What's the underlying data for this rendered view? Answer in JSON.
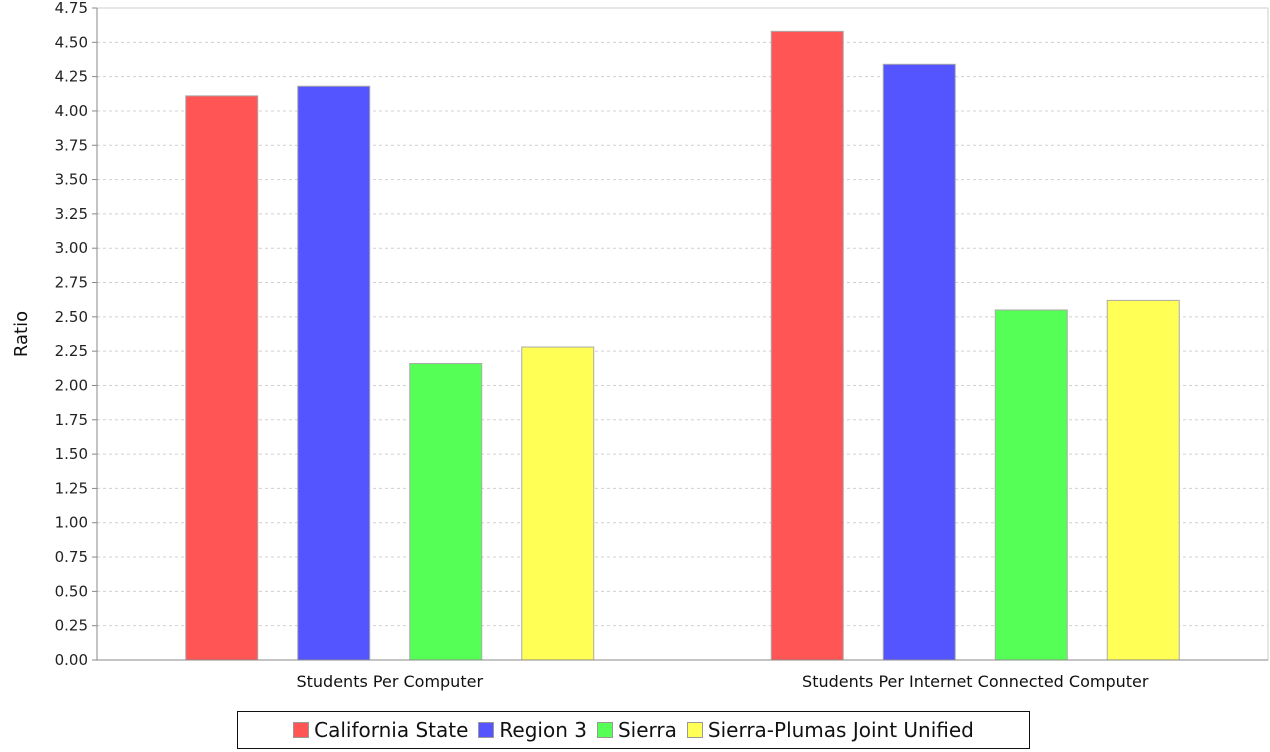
{
  "chart_data": {
    "type": "bar",
    "title": "",
    "xlabel": "",
    "ylabel": "Ratio",
    "ylim": [
      0,
      4.75
    ],
    "yticks": [
      "0.00",
      "0.25",
      "0.50",
      "0.75",
      "1.00",
      "1.25",
      "1.50",
      "1.75",
      "2.00",
      "2.25",
      "2.50",
      "2.75",
      "3.00",
      "3.25",
      "3.50",
      "3.75",
      "4.00",
      "4.25",
      "4.50",
      "4.75"
    ],
    "categories": [
      "Students Per Computer",
      "Students Per Internet Connected Computer"
    ],
    "series": [
      {
        "name": "California State",
        "color": "#ff5555",
        "values": [
          4.11,
          4.58
        ]
      },
      {
        "name": "Region 3",
        "color": "#5555ff",
        "values": [
          4.18,
          4.34
        ]
      },
      {
        "name": "Sierra",
        "color": "#55ff55",
        "values": [
          2.16,
          2.55
        ]
      },
      {
        "name": "Sierra-Plumas Joint Unified",
        "color": "#ffff55",
        "values": [
          2.28,
          2.62
        ]
      }
    ],
    "grid": true,
    "legend_position": "bottom"
  }
}
